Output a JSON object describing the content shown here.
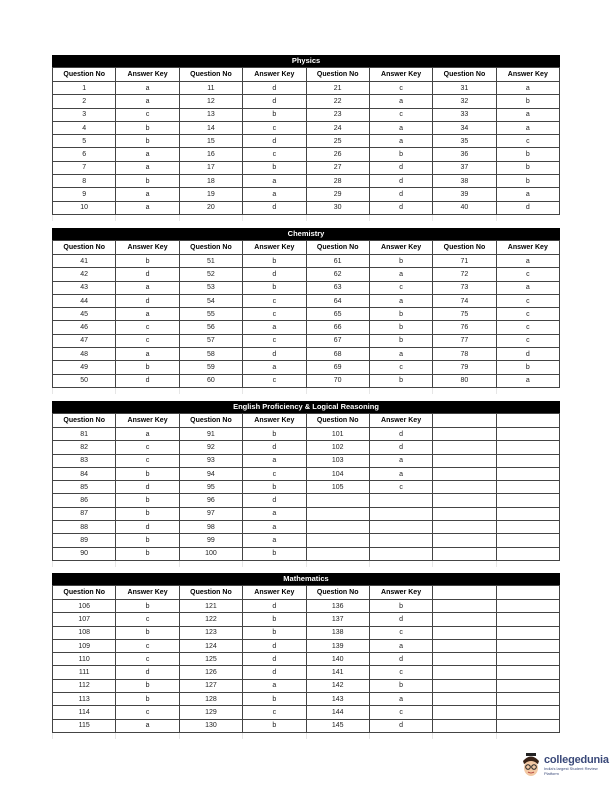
{
  "headers": [
    "Question No",
    "Answer Key",
    "Question No",
    "Answer Key",
    "Question No",
    "Answer Key",
    "Question No",
    "Answer Key"
  ],
  "sections": [
    {
      "title": "Physics",
      "columns": 8,
      "rows": [
        [
          "1",
          "a",
          "11",
          "d",
          "21",
          "c",
          "31",
          "a"
        ],
        [
          "2",
          "a",
          "12",
          "d",
          "22",
          "a",
          "32",
          "b"
        ],
        [
          "3",
          "c",
          "13",
          "b",
          "23",
          "c",
          "33",
          "a"
        ],
        [
          "4",
          "b",
          "14",
          "c",
          "24",
          "a",
          "34",
          "a"
        ],
        [
          "5",
          "b",
          "15",
          "d",
          "25",
          "a",
          "35",
          "c"
        ],
        [
          "6",
          "a",
          "16",
          "c",
          "26",
          "b",
          "36",
          "b"
        ],
        [
          "7",
          "a",
          "17",
          "b",
          "27",
          "d",
          "37",
          "b"
        ],
        [
          "8",
          "b",
          "18",
          "a",
          "28",
          "d",
          "38",
          "b"
        ],
        [
          "9",
          "a",
          "19",
          "a",
          "29",
          "d",
          "39",
          "a"
        ],
        [
          "10",
          "a",
          "20",
          "d",
          "30",
          "d",
          "40",
          "d"
        ]
      ]
    },
    {
      "title": "Chemistry",
      "columns": 8,
      "rows": [
        [
          "41",
          "b",
          "51",
          "b",
          "61",
          "b",
          "71",
          "a"
        ],
        [
          "42",
          "d",
          "52",
          "d",
          "62",
          "a",
          "72",
          "c"
        ],
        [
          "43",
          "a",
          "53",
          "b",
          "63",
          "c",
          "73",
          "a"
        ],
        [
          "44",
          "d",
          "54",
          "c",
          "64",
          "a",
          "74",
          "c"
        ],
        [
          "45",
          "a",
          "55",
          "c",
          "65",
          "b",
          "75",
          "c"
        ],
        [
          "46",
          "c",
          "56",
          "a",
          "66",
          "b",
          "76",
          "c"
        ],
        [
          "47",
          "c",
          "57",
          "c",
          "67",
          "b",
          "77",
          "c"
        ],
        [
          "48",
          "a",
          "58",
          "d",
          "68",
          "a",
          "78",
          "d"
        ],
        [
          "49",
          "b",
          "59",
          "a",
          "69",
          "c",
          "79",
          "b"
        ],
        [
          "50",
          "d",
          "60",
          "c",
          "70",
          "b",
          "80",
          "a"
        ]
      ]
    },
    {
      "title": "English Proficiency & Logical Reasoning",
      "columns": 6,
      "rows": [
        [
          "81",
          "a",
          "91",
          "b",
          "101",
          "d",
          "",
          ""
        ],
        [
          "82",
          "c",
          "92",
          "d",
          "102",
          "d",
          "",
          ""
        ],
        [
          "83",
          "c",
          "93",
          "a",
          "103",
          "a",
          "",
          ""
        ],
        [
          "84",
          "b",
          "94",
          "c",
          "104",
          "a",
          "",
          ""
        ],
        [
          "85",
          "d",
          "95",
          "b",
          "105",
          "c",
          "",
          ""
        ],
        [
          "86",
          "b",
          "96",
          "d",
          "",
          "",
          "",
          ""
        ],
        [
          "87",
          "b",
          "97",
          "a",
          "",
          "",
          "",
          ""
        ],
        [
          "88",
          "d",
          "98",
          "a",
          "",
          "",
          "",
          ""
        ],
        [
          "89",
          "b",
          "99",
          "a",
          "",
          "",
          "",
          ""
        ],
        [
          "90",
          "b",
          "100",
          "b",
          "",
          "",
          "",
          ""
        ]
      ]
    },
    {
      "title": "Mathematics",
      "columns": 6,
      "rows": [
        [
          "106",
          "b",
          "121",
          "d",
          "136",
          "b",
          "",
          ""
        ],
        [
          "107",
          "c",
          "122",
          "b",
          "137",
          "d",
          "",
          ""
        ],
        [
          "108",
          "b",
          "123",
          "b",
          "138",
          "c",
          "",
          ""
        ],
        [
          "109",
          "c",
          "124",
          "d",
          "139",
          "a",
          "",
          ""
        ],
        [
          "110",
          "c",
          "125",
          "d",
          "140",
          "d",
          "",
          ""
        ],
        [
          "111",
          "d",
          "126",
          "d",
          "141",
          "c",
          "",
          ""
        ],
        [
          "112",
          "b",
          "127",
          "a",
          "142",
          "b",
          "",
          ""
        ],
        [
          "113",
          "b",
          "128",
          "b",
          "143",
          "a",
          "",
          ""
        ],
        [
          "114",
          "c",
          "129",
          "c",
          "144",
          "c",
          "",
          ""
        ],
        [
          "115",
          "a",
          "130",
          "b",
          "145",
          "d",
          "",
          ""
        ]
      ]
    }
  ],
  "logo": {
    "name": "collegedunia",
    "tagline": "India's largest Student Review Platform"
  }
}
